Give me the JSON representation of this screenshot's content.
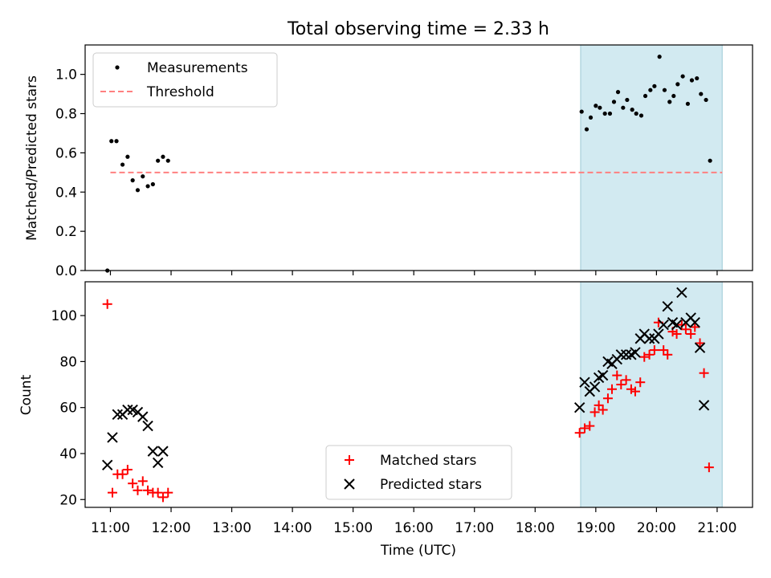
{
  "chart_data": {
    "type": "scatter",
    "title": "Total observing time = 2.33 h",
    "xlabel": "Time (UTC)",
    "xlim": [
      "10:35",
      "21:35"
    ],
    "xticks": [
      "11:00",
      "12:00",
      "13:00",
      "14:00",
      "15:00",
      "16:00",
      "17:00",
      "18:00",
      "19:00",
      "20:00",
      "21:00"
    ],
    "shaded_span": [
      "18:45",
      "21:05"
    ],
    "shade_color": "#add8e6",
    "panels": [
      {
        "ylabel": "Matched/Predicted stars",
        "ylim": [
          0,
          1.15
        ],
        "yticks": [
          "0.0",
          "0.2",
          "0.4",
          "0.6",
          "0.8",
          "1.0"
        ],
        "legend_position": "upper left",
        "threshold": {
          "name": "Threshold",
          "y": 0.5,
          "color": "#ff8080",
          "style": "dashed",
          "x": [
            "11:00",
            "21:05"
          ]
        },
        "series": [
          {
            "name": "Measurements",
            "marker": "dot",
            "color": "#000000",
            "points": [
              [
                "10:57",
                0.0
              ],
              [
                "11:01",
                0.66
              ],
              [
                "11:06",
                0.66
              ],
              [
                "11:12",
                0.54
              ],
              [
                "11:17",
                0.58
              ],
              [
                "11:22",
                0.46
              ],
              [
                "11:27",
                0.41
              ],
              [
                "11:32",
                0.48
              ],
              [
                "11:37",
                0.43
              ],
              [
                "11:42",
                0.44
              ],
              [
                "11:47",
                0.56
              ],
              [
                "11:52",
                0.58
              ],
              [
                "11:57",
                0.56
              ],
              [
                "18:46",
                0.81
              ],
              [
                "18:51",
                0.72
              ],
              [
                "18:55",
                0.78
              ],
              [
                "19:00",
                0.84
              ],
              [
                "19:04",
                0.83
              ],
              [
                "19:09",
                0.8
              ],
              [
                "19:14",
                0.8
              ],
              [
                "19:18",
                0.86
              ],
              [
                "19:22",
                0.91
              ],
              [
                "19:27",
                0.83
              ],
              [
                "19:31",
                0.87
              ],
              [
                "19:36",
                0.82
              ],
              [
                "19:40",
                0.8
              ],
              [
                "19:45",
                0.79
              ],
              [
                "19:49",
                0.89
              ],
              [
                "19:54",
                0.92
              ],
              [
                "19:58",
                0.94
              ],
              [
                "20:03",
                1.09
              ],
              [
                "20:08",
                0.92
              ],
              [
                "20:13",
                0.86
              ],
              [
                "20:17",
                0.89
              ],
              [
                "20:21",
                0.95
              ],
              [
                "20:26",
                0.99
              ],
              [
                "20:31",
                0.85
              ],
              [
                "20:35",
                0.97
              ],
              [
                "20:40",
                0.98
              ],
              [
                "20:44",
                0.9
              ],
              [
                "20:49",
                0.87
              ],
              [
                "20:53",
                0.56
              ]
            ]
          }
        ]
      },
      {
        "ylabel": "Count",
        "ylim": [
          16.6,
          114.7
        ],
        "yticks": [
          "20",
          "40",
          "60",
          "80",
          "100"
        ],
        "legend_position": "lower center",
        "series": [
          {
            "name": "Matched stars",
            "marker": "plus",
            "color": "#ff0000",
            "points": [
              [
                "10:57",
                105
              ],
              [
                "11:02",
                23
              ],
              [
                "11:07",
                31
              ],
              [
                "11:12",
                31
              ],
              [
                "11:17",
                33
              ],
              [
                "11:22",
                27
              ],
              [
                "11:27",
                24
              ],
              [
                "11:32",
                28
              ],
              [
                "11:37",
                24
              ],
              [
                "11:42",
                23
              ],
              [
                "11:47",
                23
              ],
              [
                "11:52",
                21
              ],
              [
                "11:57",
                23
              ],
              [
                "18:44",
                49
              ],
              [
                "18:49",
                51
              ],
              [
                "18:54",
                52
              ],
              [
                "18:59",
                58
              ],
              [
                "19:03",
                61
              ],
              [
                "19:07",
                59
              ],
              [
                "19:12",
                64
              ],
              [
                "19:16",
                68
              ],
              [
                "19:21",
                74
              ],
              [
                "19:25",
                70
              ],
              [
                "19:30",
                72
              ],
              [
                "19:35",
                68
              ],
              [
                "19:39",
                67
              ],
              [
                "19:44",
                71
              ],
              [
                "19:48",
                82
              ],
              [
                "19:53",
                83
              ],
              [
                "19:58",
                85
              ],
              [
                "20:02",
                97
              ],
              [
                "20:07",
                85
              ],
              [
                "20:11",
                83
              ],
              [
                "20:16",
                93
              ],
              [
                "20:20",
                92
              ],
              [
                "20:25",
                96
              ],
              [
                "20:29",
                94
              ],
              [
                "20:34",
                92
              ],
              [
                "20:38",
                95
              ],
              [
                "20:43",
                88
              ],
              [
                "20:47",
                75
              ],
              [
                "20:52",
                34
              ]
            ]
          },
          {
            "name": "Predicted stars",
            "marker": "x",
            "color": "#000000",
            "points": [
              [
                "10:57",
                35
              ],
              [
                "11:02",
                47
              ],
              [
                "11:07",
                57
              ],
              [
                "11:12",
                57
              ],
              [
                "11:17",
                59
              ],
              [
                "11:22",
                59
              ],
              [
                "11:27",
                58
              ],
              [
                "11:32",
                56
              ],
              [
                "11:37",
                52
              ],
              [
                "11:42",
                41
              ],
              [
                "11:47",
                36
              ],
              [
                "11:52",
                41
              ],
              [
                "18:44",
                60
              ],
              [
                "18:49",
                71
              ],
              [
                "18:54",
                67
              ],
              [
                "18:59",
                69
              ],
              [
                "19:03",
                73
              ],
              [
                "19:07",
                74
              ],
              [
                "19:12",
                80
              ],
              [
                "19:16",
                79
              ],
              [
                "19:21",
                81
              ],
              [
                "19:25",
                83
              ],
              [
                "19:30",
                83
              ],
              [
                "19:35",
                83
              ],
              [
                "19:39",
                84
              ],
              [
                "19:44",
                90
              ],
              [
                "19:48",
                92
              ],
              [
                "19:53",
                90
              ],
              [
                "19:58",
                90
              ],
              [
                "20:02",
                92
              ],
              [
                "20:07",
                96
              ],
              [
                "20:11",
                104
              ],
              [
                "20:16",
                97
              ],
              [
                "20:20",
                96
              ],
              [
                "20:25",
                110
              ],
              [
                "20:29",
                97
              ],
              [
                "20:34",
                99
              ],
              [
                "20:38",
                97
              ],
              [
                "20:43",
                86
              ],
              [
                "20:47",
                61
              ]
            ]
          }
        ]
      }
    ]
  }
}
